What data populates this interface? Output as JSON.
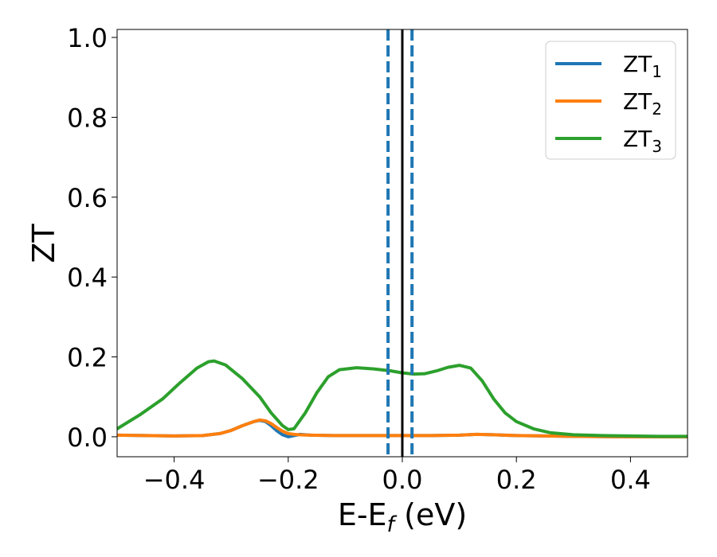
{
  "chart_data": {
    "type": "line",
    "xlabel_main": "E-E",
    "xlabel_sub": "f",
    "xlabel_unit": " (eV)",
    "ylabel": "ZT",
    "xlim": [
      -0.5,
      0.5
    ],
    "ylim": [
      -0.05,
      1.02
    ],
    "xticks": [
      {
        "value": -0.4,
        "label": "−0.4"
      },
      {
        "value": -0.2,
        "label": "−0.2"
      },
      {
        "value": 0.0,
        "label": "0.0"
      },
      {
        "value": 0.2,
        "label": "0.2"
      },
      {
        "value": 0.4,
        "label": "0.4"
      }
    ],
    "yticks": [
      {
        "value": 0.0,
        "label": "0.0"
      },
      {
        "value": 0.2,
        "label": "0.2"
      },
      {
        "value": 0.4,
        "label": "0.4"
      },
      {
        "value": 0.6,
        "label": "0.6"
      },
      {
        "value": 0.8,
        "label": "0.8"
      },
      {
        "value": 1.0,
        "label": "1.0"
      }
    ],
    "grid": false,
    "legend_position": "top-right",
    "series": [
      {
        "name_main": "ZT",
        "name_sub": "1",
        "color": "#1f77b4",
        "points": [
          [
            -0.5,
            0.004
          ],
          [
            -0.45,
            0.003
          ],
          [
            -0.4,
            0.002
          ],
          [
            -0.35,
            0.003
          ],
          [
            -0.32,
            0.008
          ],
          [
            -0.3,
            0.016
          ],
          [
            -0.28,
            0.028
          ],
          [
            -0.26,
            0.038
          ],
          [
            -0.25,
            0.041
          ],
          [
            -0.24,
            0.038
          ],
          [
            -0.23,
            0.028
          ],
          [
            -0.22,
            0.015
          ],
          [
            -0.21,
            0.005
          ],
          [
            -0.2,
            0.0
          ],
          [
            -0.19,
            0.003
          ],
          [
            -0.18,
            0.006
          ],
          [
            -0.16,
            0.004
          ],
          [
            -0.12,
            0.003
          ],
          [
            -0.05,
            0.003
          ],
          [
            0.0,
            0.003
          ],
          [
            0.05,
            0.003
          ],
          [
            0.1,
            0.004
          ],
          [
            0.13,
            0.006
          ],
          [
            0.16,
            0.005
          ],
          [
            0.2,
            0.003
          ],
          [
            0.25,
            0.002
          ],
          [
            0.3,
            0.001
          ],
          [
            0.4,
            0.0
          ],
          [
            0.5,
            0.0
          ]
        ]
      },
      {
        "name_main": "ZT",
        "name_sub": "2",
        "color": "#ff7f0e",
        "points": [
          [
            -0.5,
            0.004
          ],
          [
            -0.45,
            0.003
          ],
          [
            -0.4,
            0.002
          ],
          [
            -0.35,
            0.003
          ],
          [
            -0.32,
            0.008
          ],
          [
            -0.3,
            0.016
          ],
          [
            -0.28,
            0.028
          ],
          [
            -0.26,
            0.038
          ],
          [
            -0.25,
            0.042
          ],
          [
            -0.24,
            0.04
          ],
          [
            -0.23,
            0.033
          ],
          [
            -0.22,
            0.023
          ],
          [
            -0.21,
            0.014
          ],
          [
            -0.2,
            0.008
          ],
          [
            -0.19,
            0.006
          ],
          [
            -0.18,
            0.005
          ],
          [
            -0.16,
            0.004
          ],
          [
            -0.12,
            0.003
          ],
          [
            -0.05,
            0.003
          ],
          [
            0.0,
            0.003
          ],
          [
            0.05,
            0.003
          ],
          [
            0.1,
            0.004
          ],
          [
            0.13,
            0.006
          ],
          [
            0.16,
            0.005
          ],
          [
            0.2,
            0.003
          ],
          [
            0.25,
            0.002
          ],
          [
            0.3,
            0.001
          ],
          [
            0.4,
            0.0
          ],
          [
            0.5,
            0.0
          ]
        ]
      },
      {
        "name_main": "ZT",
        "name_sub": "3",
        "color": "#2ca02c",
        "points": [
          [
            -0.5,
            0.02
          ],
          [
            -0.46,
            0.055
          ],
          [
            -0.42,
            0.095
          ],
          [
            -0.39,
            0.135
          ],
          [
            -0.36,
            0.172
          ],
          [
            -0.34,
            0.188
          ],
          [
            -0.33,
            0.19
          ],
          [
            -0.31,
            0.18
          ],
          [
            -0.28,
            0.145
          ],
          [
            -0.25,
            0.1
          ],
          [
            -0.23,
            0.06
          ],
          [
            -0.21,
            0.028
          ],
          [
            -0.2,
            0.018
          ],
          [
            -0.19,
            0.02
          ],
          [
            -0.17,
            0.06
          ],
          [
            -0.15,
            0.11
          ],
          [
            -0.13,
            0.15
          ],
          [
            -0.11,
            0.168
          ],
          [
            -0.08,
            0.173
          ],
          [
            -0.05,
            0.17
          ],
          [
            -0.02,
            0.165
          ],
          [
            0.0,
            0.16
          ],
          [
            0.02,
            0.157
          ],
          [
            0.04,
            0.158
          ],
          [
            0.06,
            0.165
          ],
          [
            0.08,
            0.174
          ],
          [
            0.1,
            0.179
          ],
          [
            0.12,
            0.172
          ],
          [
            0.14,
            0.14
          ],
          [
            0.16,
            0.095
          ],
          [
            0.18,
            0.06
          ],
          [
            0.2,
            0.038
          ],
          [
            0.23,
            0.02
          ],
          [
            0.26,
            0.01
          ],
          [
            0.3,
            0.005
          ],
          [
            0.35,
            0.003
          ],
          [
            0.4,
            0.002
          ],
          [
            0.45,
            0.001
          ],
          [
            0.5,
            0.001
          ]
        ]
      }
    ],
    "reference_lines": [
      {
        "x": -0.025,
        "style": "dashed",
        "color": "#1f77b4"
      },
      {
        "x": 0.017,
        "style": "dashed",
        "color": "#1f77b4"
      },
      {
        "x": 0.0,
        "style": "solid",
        "color": "#000000"
      }
    ]
  }
}
